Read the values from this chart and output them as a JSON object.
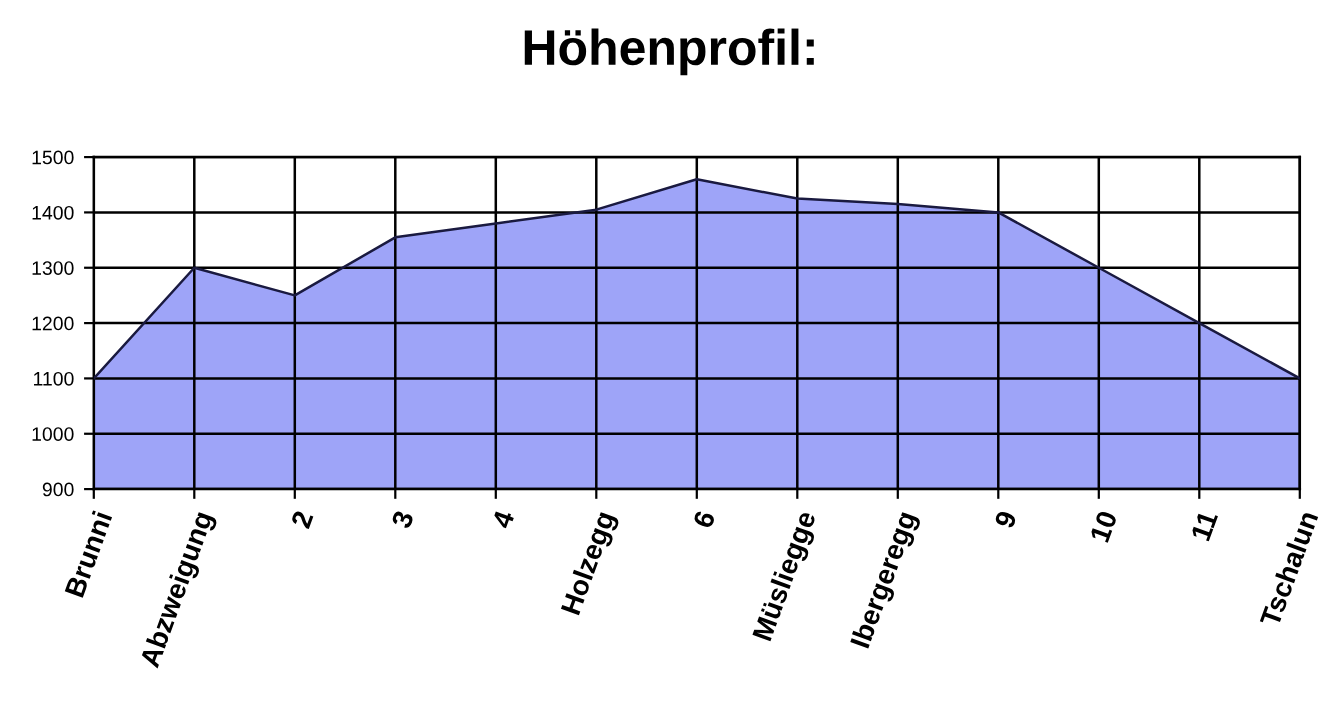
{
  "chart_data": {
    "type": "area",
    "title": "Höhenprofil:",
    "categories": [
      "Brunni",
      "Abzweigung",
      "2",
      "3",
      "4",
      "Holzegg",
      "6",
      "Müsliegge",
      "Ibergeregg",
      "9",
      "10",
      "11",
      "Tschalun"
    ],
    "series": [
      {
        "color": "#9ea4f8",
        "values": [
          1100,
          1300,
          1250,
          1355,
          1380,
          1405,
          1460,
          1425,
          1415,
          1400,
          1300,
          1200,
          1100
        ]
      }
    ],
    "ylim": [
      900,
      1500
    ],
    "yticks": [
      900,
      1000,
      1100,
      1200,
      1300,
      1400,
      1500
    ],
    "grid": true,
    "legend": false
  }
}
